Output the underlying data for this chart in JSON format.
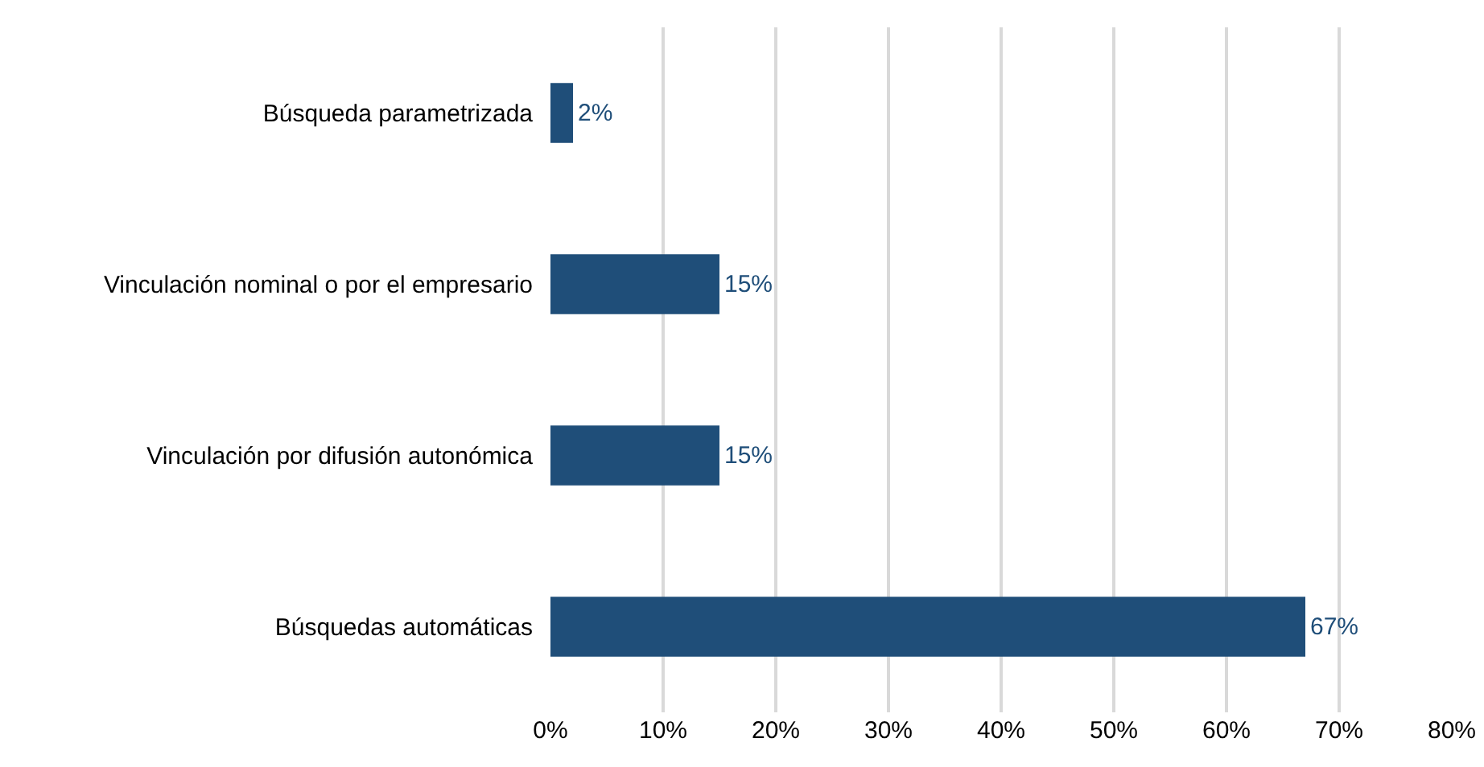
{
  "chart_data": {
    "type": "bar",
    "orientation": "horizontal",
    "categories": [
      "Búsqueda parametrizada",
      "Vinculación nominal o por el empresario",
      "Vinculación por difusión autonómica",
      "Búsquedas automáticas"
    ],
    "values": [
      2,
      15,
      15,
      67
    ],
    "value_labels": [
      "2%",
      "15%",
      "15%",
      "67%"
    ],
    "color": "#1f4e79",
    "xlim": [
      0,
      80
    ],
    "xticks": [
      {
        "value": 0,
        "label": "0%"
      },
      {
        "value": 10,
        "label": "10%"
      },
      {
        "value": 20,
        "label": "20%"
      },
      {
        "value": 30,
        "label": "30%"
      },
      {
        "value": 40,
        "label": "40%"
      },
      {
        "value": 50,
        "label": "50%"
      },
      {
        "value": 60,
        "label": "60%"
      },
      {
        "value": 70,
        "label": "70%"
      },
      {
        "value": 80,
        "label": "80%"
      }
    ],
    "grid": "x",
    "legend": false
  }
}
